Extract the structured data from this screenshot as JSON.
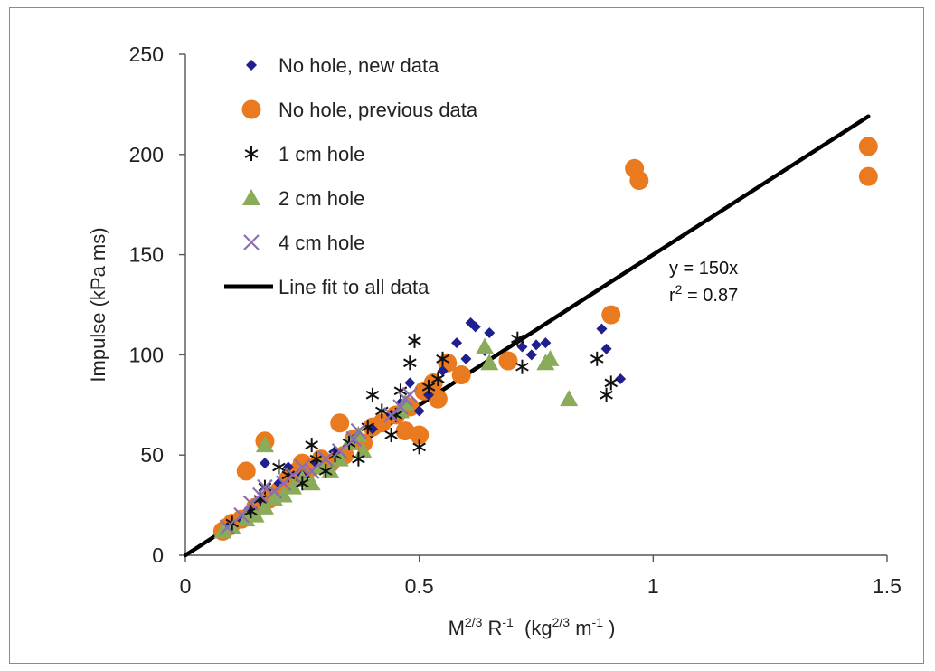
{
  "chart_data": {
    "type": "scatter",
    "xlabel": {
      "base1": "M",
      "sup1": "2/3",
      "base2": " R",
      "sup2": "-1",
      "base3": "  (kg",
      "sup3": "2/3",
      "base4": " m",
      "sup4": "-1",
      "base5": " )"
    },
    "ylabel": "Impulse (kPa ms)",
    "xlim": [
      0,
      1.5
    ],
    "ylim": [
      0,
      250
    ],
    "x_ticks": [
      "0",
      "0.5",
      "1",
      "1.5"
    ],
    "y_ticks": [
      "0",
      "50",
      "100",
      "150",
      "200",
      "250"
    ],
    "grid": false,
    "legend_position": "top-left",
    "annotation": {
      "line1": "y = 150x",
      "line2_base": "r",
      "line2_sup": "2",
      "line2_rest": " = 0.87"
    },
    "fit_line": {
      "name": "Line fit to all data",
      "slope": 150,
      "x_range": [
        0,
        1.46
      ],
      "color": "#000000"
    },
    "series": [
      {
        "name": "No hole, new data",
        "marker": "diamond",
        "color": "#1f1f8f",
        "points": [
          [
            0.09,
            14
          ],
          [
            0.12,
            18
          ],
          [
            0.14,
            22
          ],
          [
            0.16,
            28
          ],
          [
            0.17,
            46
          ],
          [
            0.2,
            36
          ],
          [
            0.22,
            44
          ],
          [
            0.25,
            40
          ],
          [
            0.28,
            46
          ],
          [
            0.32,
            52
          ],
          [
            0.36,
            58
          ],
          [
            0.4,
            63
          ],
          [
            0.44,
            70
          ],
          [
            0.46,
            76
          ],
          [
            0.48,
            86
          ],
          [
            0.5,
            72
          ],
          [
            0.52,
            80
          ],
          [
            0.55,
            92
          ],
          [
            0.58,
            106
          ],
          [
            0.6,
            98
          ],
          [
            0.61,
            116
          ],
          [
            0.62,
            114
          ],
          [
            0.64,
            102
          ],
          [
            0.65,
            111
          ],
          [
            0.72,
            104
          ],
          [
            0.74,
            100
          ],
          [
            0.75,
            105
          ],
          [
            0.77,
            106
          ],
          [
            0.89,
            113
          ],
          [
            0.9,
            103
          ],
          [
            0.93,
            88
          ]
        ]
      },
      {
        "name": "No hole, previous data",
        "marker": "circle",
        "color": "#e97a1f",
        "points": [
          [
            0.08,
            12
          ],
          [
            0.09,
            14
          ],
          [
            0.1,
            16
          ],
          [
            0.12,
            18
          ],
          [
            0.13,
            42
          ],
          [
            0.15,
            24
          ],
          [
            0.17,
            57
          ],
          [
            0.18,
            28
          ],
          [
            0.2,
            32
          ],
          [
            0.22,
            38
          ],
          [
            0.24,
            42
          ],
          [
            0.25,
            46
          ],
          [
            0.27,
            44
          ],
          [
            0.29,
            48
          ],
          [
            0.31,
            46
          ],
          [
            0.33,
            66
          ],
          [
            0.34,
            50
          ],
          [
            0.36,
            58
          ],
          [
            0.38,
            56
          ],
          [
            0.4,
            64
          ],
          [
            0.42,
            66
          ],
          [
            0.45,
            70
          ],
          [
            0.47,
            62
          ],
          [
            0.48,
            74
          ],
          [
            0.5,
            60
          ],
          [
            0.51,
            82
          ],
          [
            0.53,
            86
          ],
          [
            0.54,
            78
          ],
          [
            0.56,
            96
          ],
          [
            0.59,
            90
          ],
          [
            0.69,
            97
          ],
          [
            0.91,
            120
          ],
          [
            0.96,
            193
          ],
          [
            0.97,
            187
          ],
          [
            1.46,
            204
          ],
          [
            1.46,
            189
          ]
        ]
      },
      {
        "name": "1 cm hole",
        "marker": "asterisk",
        "color": "#111111",
        "points": [
          [
            0.1,
            16
          ],
          [
            0.14,
            22
          ],
          [
            0.16,
            28
          ],
          [
            0.17,
            34
          ],
          [
            0.2,
            44
          ],
          [
            0.22,
            40
          ],
          [
            0.25,
            36
          ],
          [
            0.27,
            55
          ],
          [
            0.28,
            48
          ],
          [
            0.3,
            42
          ],
          [
            0.32,
            50
          ],
          [
            0.35,
            56
          ],
          [
            0.37,
            48
          ],
          [
            0.39,
            64
          ],
          [
            0.4,
            80
          ],
          [
            0.42,
            72
          ],
          [
            0.44,
            60
          ],
          [
            0.45,
            70
          ],
          [
            0.46,
            82
          ],
          [
            0.48,
            96
          ],
          [
            0.49,
            107
          ],
          [
            0.5,
            54
          ],
          [
            0.52,
            84
          ],
          [
            0.54,
            88
          ],
          [
            0.55,
            98
          ],
          [
            0.71,
            108
          ],
          [
            0.72,
            94
          ],
          [
            0.88,
            98
          ],
          [
            0.9,
            80
          ],
          [
            0.91,
            86
          ]
        ]
      },
      {
        "name": "2  cm hole",
        "marker": "triangle",
        "color": "#8aab5a",
        "points": [
          [
            0.08,
            12
          ],
          [
            0.1,
            14
          ],
          [
            0.13,
            18
          ],
          [
            0.15,
            20
          ],
          [
            0.17,
            24
          ],
          [
            0.17,
            55
          ],
          [
            0.19,
            28
          ],
          [
            0.21,
            30
          ],
          [
            0.23,
            34
          ],
          [
            0.25,
            38
          ],
          [
            0.27,
            36
          ],
          [
            0.29,
            44
          ],
          [
            0.31,
            42
          ],
          [
            0.33,
            48
          ],
          [
            0.35,
            56
          ],
          [
            0.37,
            60
          ],
          [
            0.38,
            52
          ],
          [
            0.46,
            72
          ],
          [
            0.47,
            76
          ],
          [
            0.64,
            104
          ],
          [
            0.65,
            96
          ],
          [
            0.77,
            96
          ],
          [
            0.78,
            98
          ],
          [
            0.82,
            78
          ]
        ]
      },
      {
        "name": "4 cm hole",
        "marker": "x",
        "color": "#8a6fb0",
        "points": [
          [
            0.09,
            14
          ],
          [
            0.12,
            20
          ],
          [
            0.14,
            26
          ],
          [
            0.16,
            30
          ],
          [
            0.17,
            34
          ],
          [
            0.19,
            32
          ],
          [
            0.21,
            36
          ],
          [
            0.23,
            40
          ],
          [
            0.25,
            44
          ],
          [
            0.27,
            42
          ],
          [
            0.3,
            48
          ],
          [
            0.33,
            52
          ],
          [
            0.36,
            58
          ],
          [
            0.37,
            62
          ],
          [
            0.44,
            70
          ],
          [
            0.46,
            74
          ],
          [
            0.47,
            78
          ],
          [
            0.48,
            80
          ]
        ]
      }
    ]
  }
}
